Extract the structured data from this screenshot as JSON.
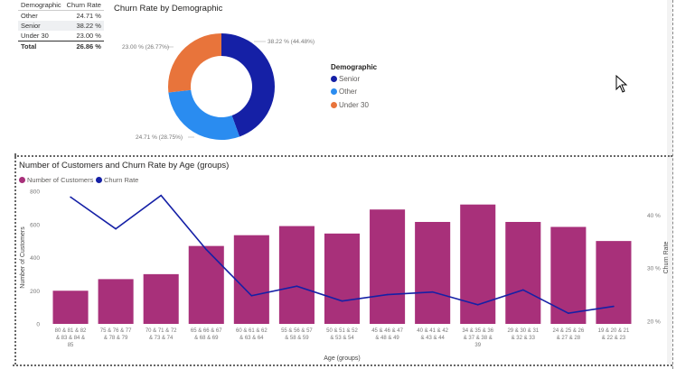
{
  "table": {
    "headers": [
      "Demographic",
      "Churn Rate"
    ],
    "rows": [
      {
        "label": "Other",
        "value": "24.71 %"
      },
      {
        "label": "Senior",
        "value": "38.22 %"
      },
      {
        "label": "Under 30",
        "value": "23.00 %"
      }
    ],
    "total": {
      "label": "Total",
      "value": "26.86 %"
    }
  },
  "chart_data": [
    {
      "type": "pie",
      "title": "Churn Rate by Demographic",
      "legend_title": "Demographic",
      "legend_position": "right",
      "slices": [
        {
          "name": "Senior",
          "value": 38.22,
          "share": 44.48,
          "label": "38.22 % (44.48%)",
          "color": "#1520a6"
        },
        {
          "name": "Other",
          "value": 24.71,
          "share": 28.75,
          "label": "24.71 % (28.75%)",
          "color": "#2a8cf0"
        },
        {
          "name": "Under 30",
          "value": 23.0,
          "share": 26.77,
          "label": "23.00 % (26.77%)",
          "color": "#e8743b"
        }
      ]
    },
    {
      "type": "bar",
      "title": "Number of Customers and Churn Rate by Age (groups)",
      "xlabel": "Age (groups)",
      "ylabel": "Number of Customers",
      "y2label": "Churn Rate",
      "ylim": [
        0,
        800
      ],
      "y2lim": [
        0.2,
        0.45
      ],
      "yticks": [
        "0",
        "200",
        "400",
        "600",
        "800"
      ],
      "y2ticks": [
        "20 %",
        "30 %",
        "40 %"
      ],
      "legend_position": "top-left",
      "categories": [
        "80 & 81 & 82 & 83 & 84 & 85",
        "75 & 76 & 77 & 78 & 79",
        "70 & 71 & 72 & 73 & 74",
        "65 & 66 & 67 & 68 & 69",
        "60 & 61 & 62 & 63 & 64",
        "55 & 56 & 57 & 58 & 59",
        "50 & 51 & 52 & 53 & 54",
        "45 & 46 & 47 & 48 & 49",
        "40 & 41 & 42 & 43 & 44",
        "34 & 35 & 36 & 37 & 38 & 39",
        "29 & 30 & 31 & 32 & 33",
        "24 & 25 & 26 & 27 & 28",
        "19 & 20 & 21 & 22 & 23"
      ],
      "category_lines": [
        [
          "80 & 81 & 82",
          "& 83 & 84 &",
          "85"
        ],
        [
          "75 & 76 & 77",
          "& 78 & 79"
        ],
        [
          "70 & 71 & 72",
          "& 73 & 74"
        ],
        [
          "65 & 66 & 67",
          "& 68 & 69"
        ],
        [
          "60 & 61 & 62",
          "& 63 & 64"
        ],
        [
          "55 & 56 & 57",
          "& 58 & 59"
        ],
        [
          "50 & 51 & 52",
          "& 53 & 54"
        ],
        [
          "45 & 46 & 47",
          "& 48 & 49"
        ],
        [
          "40 & 41 & 42",
          "& 43 & 44"
        ],
        [
          "34 & 35 & 36",
          "& 37 & 38 &",
          "39"
        ],
        [
          "29 & 30 & 31",
          "& 32 & 33"
        ],
        [
          "24 & 25 & 26",
          "& 27 & 28"
        ],
        [
          "19 & 20 & 21",
          "& 22 & 23"
        ]
      ],
      "series": [
        {
          "name": "Number of Customers",
          "axis": "left",
          "type": "bar",
          "color": "#a8307a",
          "values": [
            200,
            270,
            300,
            470,
            535,
            590,
            545,
            690,
            615,
            720,
            615,
            585,
            500
          ]
        },
        {
          "name": "Churn Rate",
          "axis": "right",
          "type": "line",
          "color": "#1520a6",
          "values": [
            0.434,
            0.374,
            0.437,
            0.335,
            0.248,
            0.266,
            0.238,
            0.25,
            0.255,
            0.231,
            0.259,
            0.215,
            0.228
          ]
        }
      ]
    }
  ]
}
